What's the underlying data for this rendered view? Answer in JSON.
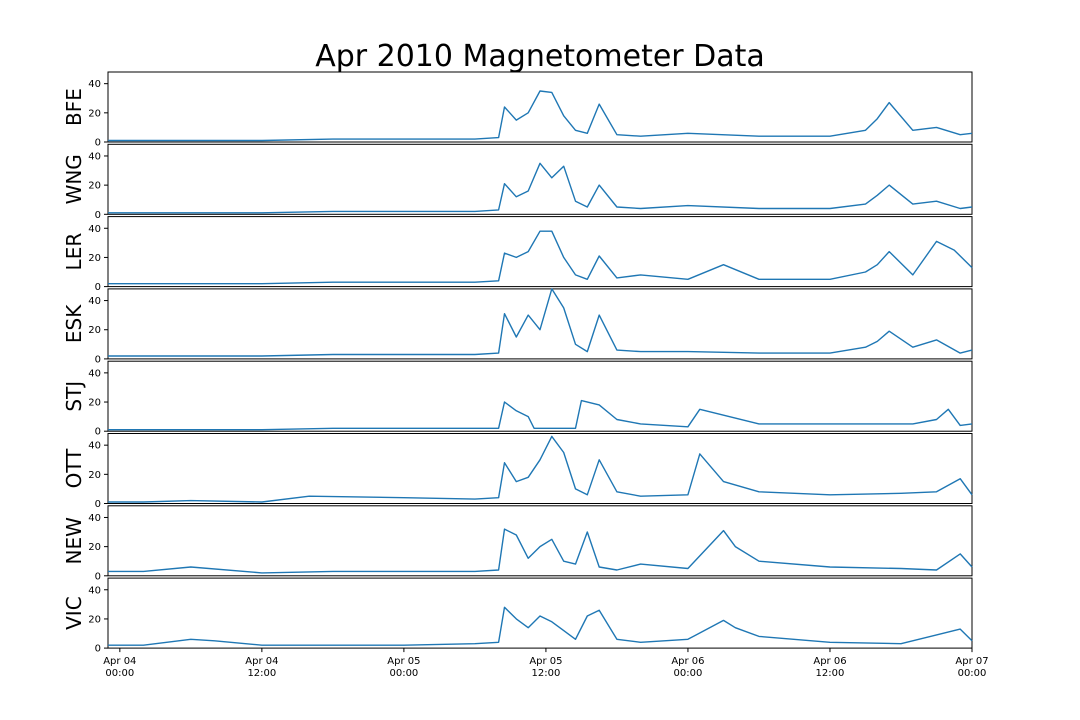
{
  "chart_data": {
    "type": "line",
    "title": "Apr 2010 Magnetometer Data",
    "xlabel": "",
    "xlim": [
      "2010-04-03T23:00",
      "2010-04-07T00:00"
    ],
    "x_ticks": [
      {
        "value": "2010-04-04T00:00",
        "label_top": "Apr 04",
        "label_bottom": "00:00"
      },
      {
        "value": "2010-04-04T12:00",
        "label_top": "Apr 04",
        "label_bottom": "12:00"
      },
      {
        "value": "2010-04-05T00:00",
        "label_top": "Apr 05",
        "label_bottom": "00:00"
      },
      {
        "value": "2010-04-05T12:00",
        "label_top": "Apr 05",
        "label_bottom": "12:00"
      },
      {
        "value": "2010-04-06T00:00",
        "label_top": "Apr 06",
        "label_bottom": "00:00"
      },
      {
        "value": "2010-04-06T12:00",
        "label_top": "Apr 06",
        "label_bottom": "12:00"
      },
      {
        "value": "2010-04-07T00:00",
        "label_top": "Apr 07",
        "label_bottom": "00:00"
      }
    ],
    "ylim": [
      0,
      48
    ],
    "y_ticks": [
      0,
      20,
      40
    ],
    "line_color": "#1f77b4",
    "grid": false,
    "panels": [
      {
        "name": "BFE",
        "x": [
          "2010-04-03T23:00",
          "2010-04-04T06:00",
          "2010-04-04T12:00",
          "2010-04-04T18:00",
          "2010-04-05T00:00",
          "2010-04-05T06:00",
          "2010-04-05T08:00",
          "2010-04-05T08:30",
          "2010-04-05T09:30",
          "2010-04-05T10:30",
          "2010-04-05T11:30",
          "2010-04-05T12:30",
          "2010-04-05T13:30",
          "2010-04-05T14:30",
          "2010-04-05T15:30",
          "2010-04-05T16:30",
          "2010-04-05T18:00",
          "2010-04-05T20:00",
          "2010-04-06T00:00",
          "2010-04-06T06:00",
          "2010-04-06T12:00",
          "2010-04-06T15:00",
          "2010-04-06T16:00",
          "2010-04-06T17:00",
          "2010-04-06T19:00",
          "2010-04-06T21:00",
          "2010-04-06T23:00",
          "2010-04-07T00:00"
        ],
        "y": [
          1,
          1,
          1,
          2,
          2,
          2,
          3,
          24,
          15,
          20,
          35,
          34,
          18,
          8,
          6,
          26,
          5,
          4,
          6,
          4,
          4,
          8,
          16,
          27,
          8,
          10,
          5,
          6
        ]
      },
      {
        "name": "WNG",
        "x": [
          "2010-04-03T23:00",
          "2010-04-04T06:00",
          "2010-04-04T12:00",
          "2010-04-04T18:00",
          "2010-04-05T00:00",
          "2010-04-05T06:00",
          "2010-04-05T08:00",
          "2010-04-05T08:30",
          "2010-04-05T09:30",
          "2010-04-05T10:30",
          "2010-04-05T11:30",
          "2010-04-05T12:30",
          "2010-04-05T13:30",
          "2010-04-05T14:30",
          "2010-04-05T15:30",
          "2010-04-05T16:30",
          "2010-04-05T18:00",
          "2010-04-05T20:00",
          "2010-04-06T00:00",
          "2010-04-06T06:00",
          "2010-04-06T12:00",
          "2010-04-06T15:00",
          "2010-04-06T16:00",
          "2010-04-06T17:00",
          "2010-04-06T19:00",
          "2010-04-06T21:00",
          "2010-04-06T23:00",
          "2010-04-07T00:00"
        ],
        "y": [
          1,
          1,
          1,
          2,
          2,
          2,
          3,
          21,
          12,
          16,
          35,
          25,
          33,
          9,
          5,
          20,
          5,
          4,
          6,
          4,
          4,
          7,
          13,
          20,
          7,
          9,
          4,
          5
        ]
      },
      {
        "name": "LER",
        "x": [
          "2010-04-03T23:00",
          "2010-04-04T06:00",
          "2010-04-04T12:00",
          "2010-04-04T18:00",
          "2010-04-05T00:00",
          "2010-04-05T06:00",
          "2010-04-05T08:00",
          "2010-04-05T08:30",
          "2010-04-05T09:30",
          "2010-04-05T10:30",
          "2010-04-05T11:30",
          "2010-04-05T12:30",
          "2010-04-05T13:30",
          "2010-04-05T14:30",
          "2010-04-05T15:30",
          "2010-04-05T16:30",
          "2010-04-05T18:00",
          "2010-04-05T20:00",
          "2010-04-06T00:00",
          "2010-04-06T03:00",
          "2010-04-06T06:00",
          "2010-04-06T12:00",
          "2010-04-06T15:00",
          "2010-04-06T16:00",
          "2010-04-06T17:00",
          "2010-04-06T19:00",
          "2010-04-06T21:00",
          "2010-04-06T22:30",
          "2010-04-07T00:00"
        ],
        "y": [
          2,
          2,
          2,
          3,
          3,
          3,
          4,
          23,
          20,
          24,
          38,
          38,
          20,
          8,
          5,
          21,
          6,
          8,
          5,
          15,
          5,
          5,
          10,
          15,
          24,
          8,
          31,
          25,
          13
        ]
      },
      {
        "name": "ESK",
        "x": [
          "2010-04-03T23:00",
          "2010-04-04T06:00",
          "2010-04-04T12:00",
          "2010-04-04T18:00",
          "2010-04-05T00:00",
          "2010-04-05T06:00",
          "2010-04-05T08:00",
          "2010-04-05T08:30",
          "2010-04-05T09:30",
          "2010-04-05T10:30",
          "2010-04-05T11:30",
          "2010-04-05T12:30",
          "2010-04-05T13:30",
          "2010-04-05T14:30",
          "2010-04-05T15:30",
          "2010-04-05T16:30",
          "2010-04-05T18:00",
          "2010-04-05T20:00",
          "2010-04-06T00:00",
          "2010-04-06T06:00",
          "2010-04-06T12:00",
          "2010-04-06T15:00",
          "2010-04-06T16:00",
          "2010-04-06T17:00",
          "2010-04-06T19:00",
          "2010-04-06T21:00",
          "2010-04-06T23:00",
          "2010-04-07T00:00"
        ],
        "y": [
          2,
          2,
          2,
          3,
          3,
          3,
          4,
          31,
          15,
          30,
          20,
          48,
          35,
          10,
          5,
          30,
          6,
          5,
          5,
          4,
          4,
          8,
          12,
          19,
          8,
          13,
          4,
          6
        ]
      },
      {
        "name": "STJ",
        "x": [
          "2010-04-03T23:00",
          "2010-04-04T06:00",
          "2010-04-04T12:00",
          "2010-04-04T18:00",
          "2010-04-05T00:00",
          "2010-04-05T06:00",
          "2010-04-05T08:00",
          "2010-04-05T08:30",
          "2010-04-05T09:30",
          "2010-04-05T10:30",
          "2010-04-05T11:00",
          "2010-04-05T14:30",
          "2010-04-05T15:00",
          "2010-04-05T16:30",
          "2010-04-05T18:00",
          "2010-04-05T20:00",
          "2010-04-06T00:00",
          "2010-04-06T01:00",
          "2010-04-06T06:00",
          "2010-04-06T12:00",
          "2010-04-06T16:00",
          "2010-04-06T19:00",
          "2010-04-06T21:00",
          "2010-04-06T22:00",
          "2010-04-06T23:00",
          "2010-04-07T00:00"
        ],
        "y": [
          1,
          1,
          1,
          2,
          2,
          2,
          2,
          20,
          14,
          10,
          2,
          2,
          21,
          18,
          8,
          5,
          3,
          15,
          5,
          5,
          5,
          5,
          8,
          15,
          4,
          5
        ]
      },
      {
        "name": "OTT",
        "x": [
          "2010-04-03T23:00",
          "2010-04-04T02:00",
          "2010-04-04T06:00",
          "2010-04-04T12:00",
          "2010-04-04T16:00",
          "2010-04-05T00:00",
          "2010-04-05T06:00",
          "2010-04-05T08:00",
          "2010-04-05T08:30",
          "2010-04-05T09:30",
          "2010-04-05T10:30",
          "2010-04-05T11:30",
          "2010-04-05T12:30",
          "2010-04-05T13:30",
          "2010-04-05T14:30",
          "2010-04-05T15:30",
          "2010-04-05T16:30",
          "2010-04-05T18:00",
          "2010-04-05T20:00",
          "2010-04-06T00:00",
          "2010-04-06T01:00",
          "2010-04-06T03:00",
          "2010-04-06T06:00",
          "2010-04-06T12:00",
          "2010-04-06T18:00",
          "2010-04-06T21:00",
          "2010-04-06T23:00",
          "2010-04-07T00:00"
        ],
        "y": [
          1,
          1,
          2,
          1,
          5,
          4,
          3,
          4,
          28,
          15,
          18,
          30,
          46,
          35,
          10,
          6,
          30,
          8,
          5,
          6,
          34,
          15,
          8,
          6,
          7,
          8,
          17,
          6
        ]
      },
      {
        "name": "NEW",
        "x": [
          "2010-04-03T23:00",
          "2010-04-04T02:00",
          "2010-04-04T06:00",
          "2010-04-04T12:00",
          "2010-04-04T18:00",
          "2010-04-05T00:00",
          "2010-04-05T06:00",
          "2010-04-05T08:00",
          "2010-04-05T08:30",
          "2010-04-05T09:30",
          "2010-04-05T10:30",
          "2010-04-05T11:30",
          "2010-04-05T12:30",
          "2010-04-05T13:30",
          "2010-04-05T14:30",
          "2010-04-05T15:30",
          "2010-04-05T16:30",
          "2010-04-05T18:00",
          "2010-04-05T20:00",
          "2010-04-06T00:00",
          "2010-04-06T03:00",
          "2010-04-06T04:00",
          "2010-04-06T06:00",
          "2010-04-06T12:00",
          "2010-04-06T18:00",
          "2010-04-06T21:00",
          "2010-04-06T23:00",
          "2010-04-07T00:00"
        ],
        "y": [
          3,
          3,
          6,
          2,
          3,
          3,
          3,
          4,
          32,
          28,
          12,
          20,
          25,
          10,
          8,
          30,
          6,
          4,
          8,
          5,
          31,
          20,
          10,
          6,
          5,
          4,
          15,
          6
        ]
      },
      {
        "name": "VIC",
        "x": [
          "2010-04-03T23:00",
          "2010-04-04T02:00",
          "2010-04-04T06:00",
          "2010-04-04T08:00",
          "2010-04-04T12:00",
          "2010-04-04T18:00",
          "2010-04-05T00:00",
          "2010-04-05T06:00",
          "2010-04-05T08:00",
          "2010-04-05T08:30",
          "2010-04-05T09:30",
          "2010-04-05T10:30",
          "2010-04-05T11:30",
          "2010-04-05T12:30",
          "2010-04-05T13:30",
          "2010-04-05T14:30",
          "2010-04-05T15:30",
          "2010-04-05T16:30",
          "2010-04-05T18:00",
          "2010-04-05T20:00",
          "2010-04-06T00:00",
          "2010-04-06T03:00",
          "2010-04-06T04:00",
          "2010-04-06T06:00",
          "2010-04-06T12:00",
          "2010-04-06T18:00",
          "2010-04-06T23:00",
          "2010-04-07T00:00"
        ],
        "y": [
          2,
          2,
          6,
          5,
          2,
          2,
          2,
          3,
          4,
          28,
          20,
          14,
          22,
          18,
          12,
          6,
          22,
          26,
          6,
          4,
          6,
          19,
          14,
          8,
          4,
          3,
          13,
          5
        ]
      }
    ]
  }
}
